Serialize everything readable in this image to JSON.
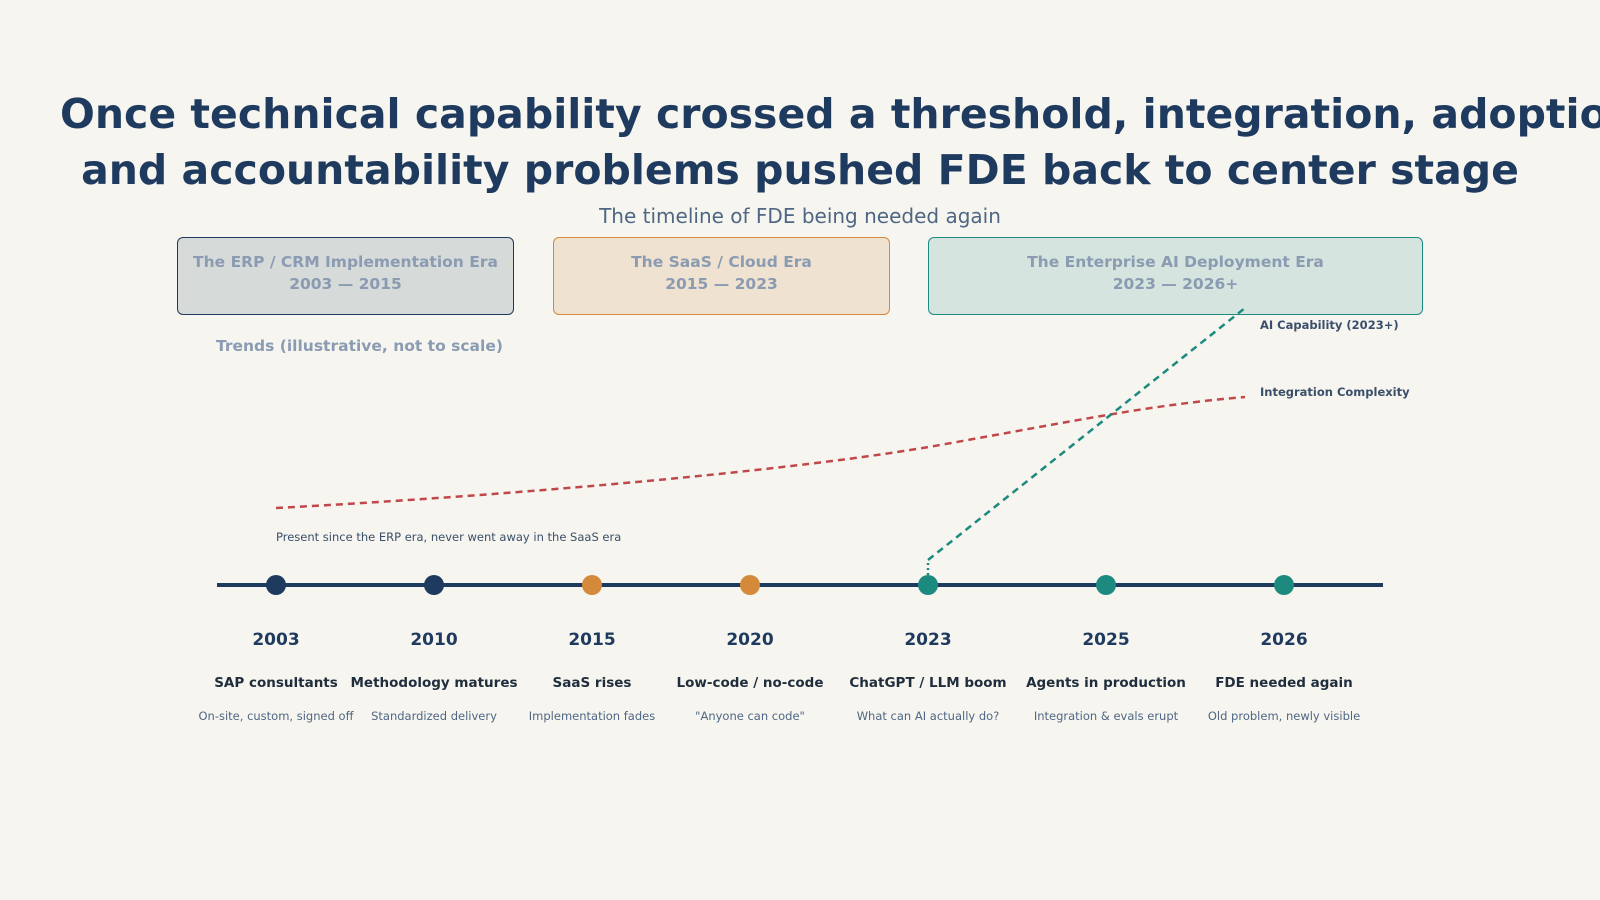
{
  "title": {
    "line1": "Once technical capability crossed a threshold, integration, adoption,",
    "line2": "and accountability problems pushed FDE back to center stage"
  },
  "subtitle": "The timeline of FDE being needed again",
  "eras": [
    {
      "name": "The ERP / CRM Implementation Era",
      "range": "2003 — 2015",
      "color": "#1f3a5f"
    },
    {
      "name": "The SaaS / Cloud Era",
      "range": "2015 — 2023",
      "color": "#d48a3a"
    },
    {
      "name": "The Enterprise AI Deployment Era",
      "range": "2023 — 2026+",
      "color": "#1d8a80"
    }
  ],
  "trends_label": "Trends (illustrative, not to scale)",
  "chart_data": {
    "type": "line",
    "series": [
      {
        "name": "AI Capability (2023+)",
        "color": "#1d8a80",
        "style": "dashed"
      },
      {
        "name": "Integration Complexity",
        "color": "#c0474a",
        "style": "dashed"
      }
    ],
    "note": "Present since the ERP era, never went away in the SaaS era",
    "milestones": [
      {
        "year": "2003",
        "event": "SAP consultants",
        "desc": "On-site, custom, signed off",
        "color": "#1f3a5f"
      },
      {
        "year": "2010",
        "event": "Methodology matures",
        "desc": "Standardized delivery",
        "color": "#1f3a5f"
      },
      {
        "year": "2015",
        "event": "SaaS rises",
        "desc": "Implementation fades",
        "color": "#d48a3a"
      },
      {
        "year": "2020",
        "event": "Low-code / no-code",
        "desc": "\"Anyone can code\"",
        "color": "#d48a3a"
      },
      {
        "year": "2023",
        "event": "ChatGPT / LLM boom",
        "desc": "What can AI actually do?",
        "color": "#1d8a80"
      },
      {
        "year": "2025",
        "event": "Agents in production",
        "desc": "Integration & evals erupt",
        "color": "#1d8a80"
      },
      {
        "year": "2026",
        "event": "FDE needed again",
        "desc": "Old problem, newly visible",
        "color": "#1d8a80"
      }
    ]
  }
}
